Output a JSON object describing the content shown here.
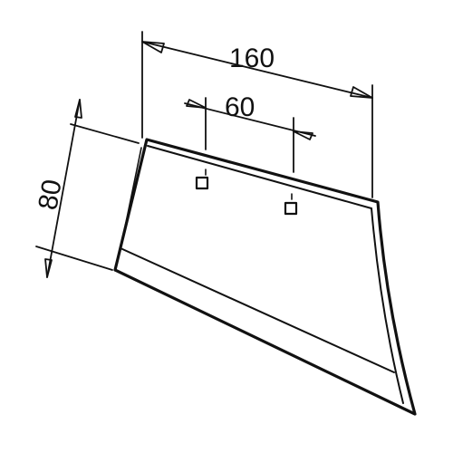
{
  "drawing": {
    "dimensions": {
      "overall_width": "160",
      "hole_spacing": "60",
      "height": "80"
    },
    "colors": {
      "ink": "#111111",
      "paper": "#ffffff"
    },
    "part": "plough-share-blade",
    "mounting_holes": 2
  }
}
